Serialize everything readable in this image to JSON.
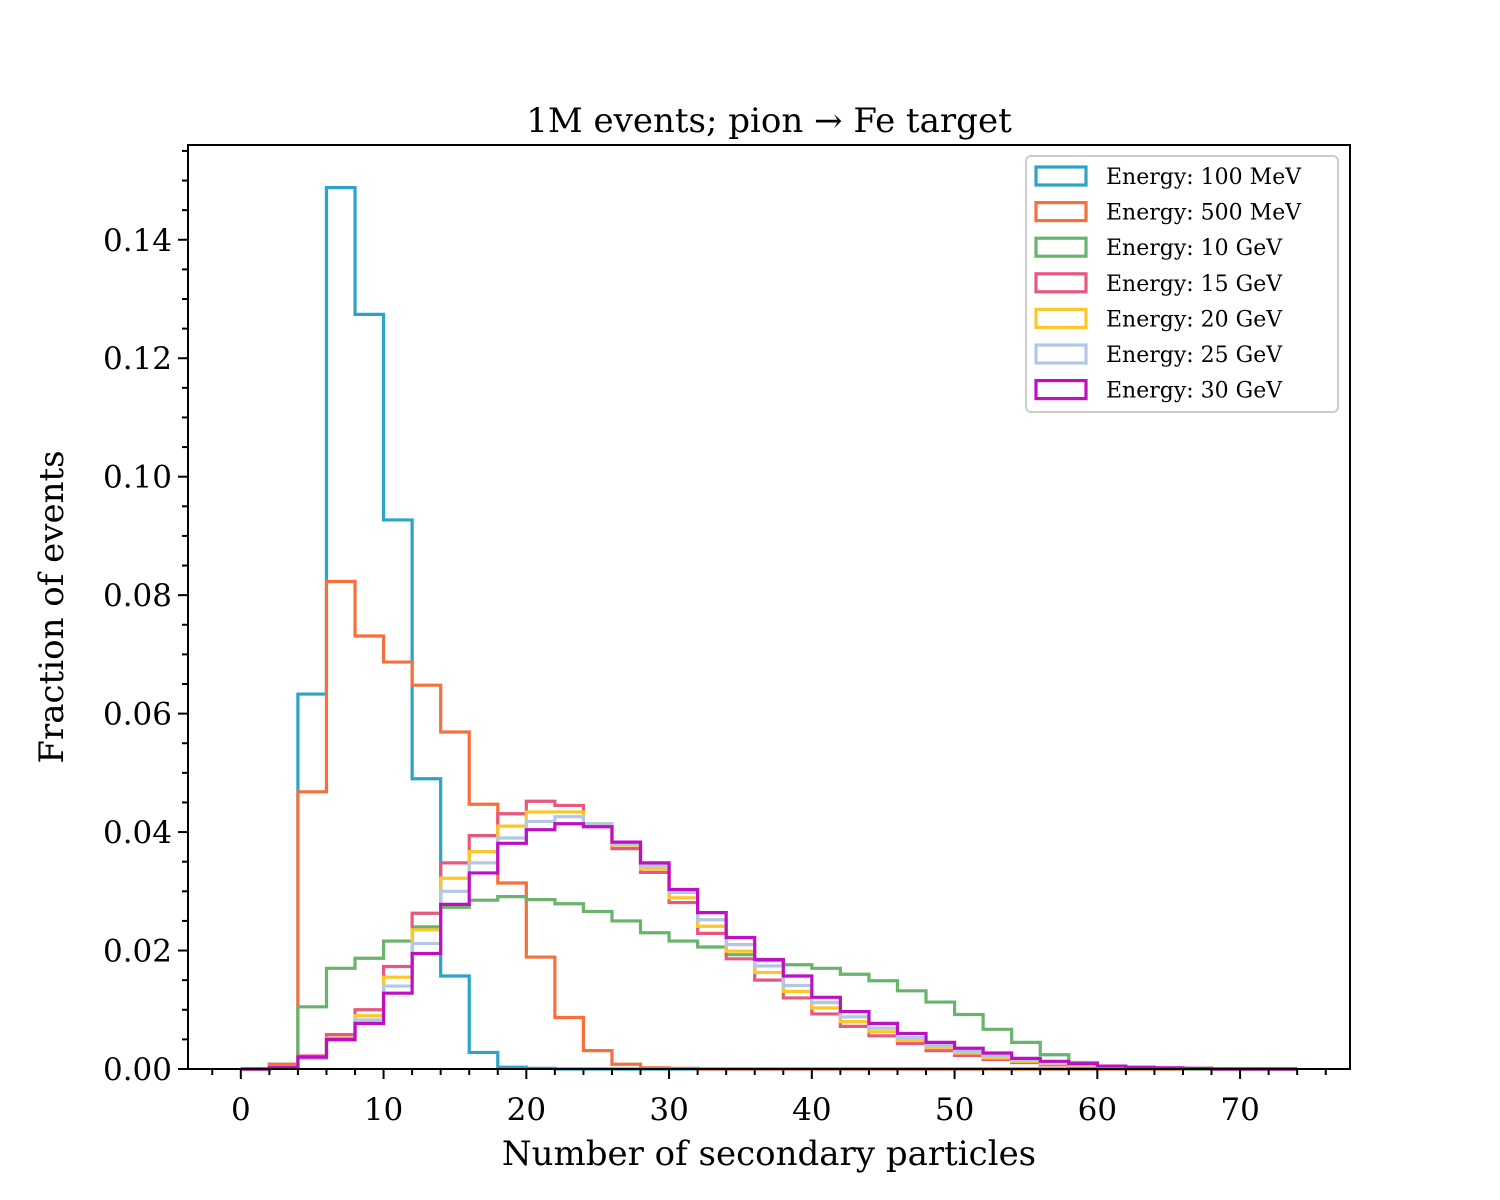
{
  "chart_data": {
    "type": "histogram",
    "title": "1M events; pion → Fe target",
    "xlabel": "Number of secondary particles",
    "ylabel": "Fraction of events",
    "xlim": [
      -3.7,
      77.7
    ],
    "ylim": [
      0,
      0.156
    ],
    "xticks": [
      0,
      10,
      20,
      30,
      40,
      50,
      60,
      70
    ],
    "xtick_labels": [
      "0",
      "10",
      "20",
      "30",
      "40",
      "50",
      "60",
      "70"
    ],
    "yticks": [
      0.0,
      0.02,
      0.04,
      0.06,
      0.08,
      0.1,
      0.12,
      0.14
    ],
    "ytick_labels": [
      "0.00",
      "0.02",
      "0.04",
      "0.06",
      "0.08",
      "0.10",
      "0.12",
      "0.14"
    ],
    "grid": false,
    "legend_position": "top-right",
    "bin_edges": [
      0,
      2,
      4,
      6,
      8,
      10,
      12,
      14,
      16,
      18,
      20,
      22,
      24,
      26,
      28,
      30,
      32,
      34,
      36,
      38,
      40,
      42,
      44,
      46,
      48,
      50,
      52,
      54,
      56,
      58,
      60,
      62,
      64,
      66,
      68,
      70,
      72,
      74
    ],
    "series": [
      {
        "name": "Energy: 100 MeV",
        "color": "#2ca3c8",
        "values": [
          0,
          0.0008,
          0.0633,
          0.1488,
          0.1274,
          0.0927,
          0.049,
          0.0157,
          0.0028,
          0.0003,
          0.0001,
          0,
          0,
          0,
          0,
          0,
          0,
          0,
          0,
          0,
          0,
          0,
          0,
          0,
          0,
          0,
          0,
          0,
          0,
          0,
          0,
          0,
          0,
          0,
          0,
          0,
          0
        ]
      },
      {
        "name": "Energy: 500 MeV",
        "color": "#f5703a",
        "values": [
          0,
          0.0008,
          0.0468,
          0.0823,
          0.0731,
          0.0687,
          0.0648,
          0.0569,
          0.0447,
          0.0314,
          0.0189,
          0.0087,
          0.0031,
          0.0008,
          0.0002,
          0.0001,
          0,
          0,
          0,
          0,
          0,
          0,
          0,
          0,
          0,
          0,
          0,
          0,
          0,
          0,
          0,
          0,
          0,
          0,
          0,
          0,
          0
        ]
      },
      {
        "name": "Energy: 10 GeV",
        "color": "#6ab36b",
        "values": [
          0,
          0.0004,
          0.0105,
          0.017,
          0.0187,
          0.0216,
          0.024,
          0.0273,
          0.0285,
          0.0291,
          0.0286,
          0.0279,
          0.0266,
          0.025,
          0.023,
          0.0216,
          0.0206,
          0.0193,
          0.0183,
          0.0176,
          0.017,
          0.016,
          0.0149,
          0.0132,
          0.0113,
          0.0092,
          0.0067,
          0.0045,
          0.0024,
          0.0011,
          0.0004,
          0.0002,
          0.0001,
          0,
          0,
          0,
          0
        ]
      },
      {
        "name": "Energy: 15 GeV",
        "color": "#e8587c",
        "values": [
          0,
          0.0004,
          0.0022,
          0.0058,
          0.01,
          0.0173,
          0.0263,
          0.0348,
          0.0394,
          0.0431,
          0.0452,
          0.0445,
          0.0411,
          0.0372,
          0.0332,
          0.0281,
          0.0229,
          0.0186,
          0.015,
          0.012,
          0.0093,
          0.0072,
          0.0056,
          0.0043,
          0.0031,
          0.0023,
          0.0016,
          0.0011,
          0.0007,
          0.0005,
          0.0003,
          0.0002,
          0.0001,
          0.0001,
          0,
          0,
          0
        ]
      },
      {
        "name": "Energy: 20 GeV",
        "color": "#fcc72a",
        "values": [
          0,
          0.0004,
          0.002,
          0.0052,
          0.009,
          0.0155,
          0.0235,
          0.0322,
          0.0367,
          0.041,
          0.0434,
          0.0434,
          0.0414,
          0.0378,
          0.0338,
          0.0289,
          0.0241,
          0.0199,
          0.0163,
          0.0131,
          0.0103,
          0.008,
          0.0063,
          0.0048,
          0.0036,
          0.0027,
          0.0019,
          0.0013,
          0.0009,
          0.0006,
          0.0004,
          0.0002,
          0.0001,
          0.0001,
          0,
          0,
          0
        ]
      },
      {
        "name": "Energy: 25 GeV",
        "color": "#b1c7e5",
        "values": [
          0,
          0.0004,
          0.0018,
          0.0048,
          0.0083,
          0.014,
          0.0212,
          0.03,
          0.0348,
          0.039,
          0.0418,
          0.0426,
          0.0414,
          0.038,
          0.0343,
          0.0298,
          0.0252,
          0.021,
          0.0174,
          0.0141,
          0.0112,
          0.0088,
          0.0069,
          0.0053,
          0.004,
          0.003,
          0.0022,
          0.0015,
          0.001,
          0.0007,
          0.0004,
          0.0003,
          0.0002,
          0.0001,
          0,
          0,
          0
        ]
      },
      {
        "name": "Energy: 30 GeV",
        "color": "#be0fc2",
        "values": [
          0,
          0.0003,
          0.002,
          0.005,
          0.0077,
          0.0128,
          0.0195,
          0.0278,
          0.0331,
          0.0381,
          0.0404,
          0.0414,
          0.0409,
          0.0383,
          0.0348,
          0.0303,
          0.0264,
          0.0222,
          0.0185,
          0.0157,
          0.0121,
          0.0097,
          0.0077,
          0.006,
          0.0045,
          0.0035,
          0.0027,
          0.0018,
          0.0013,
          0.0009,
          0.0005,
          0.0003,
          0.0002,
          0.0001,
          0,
          0,
          0
        ]
      }
    ]
  }
}
